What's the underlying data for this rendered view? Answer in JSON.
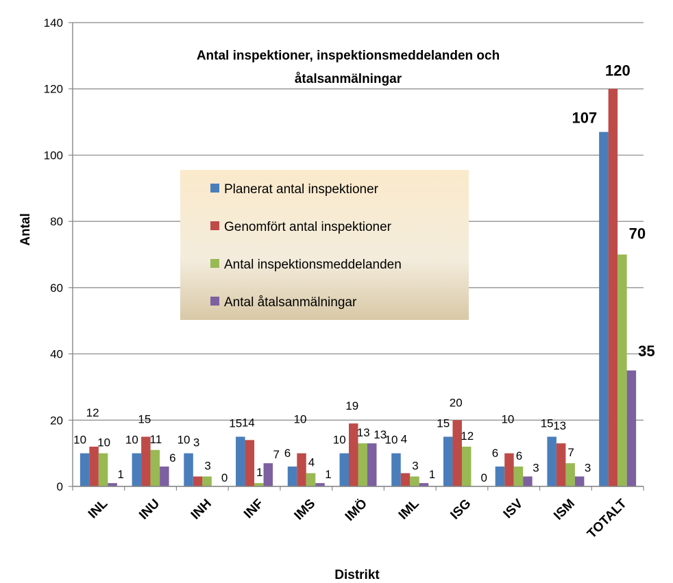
{
  "chart_data": {
    "type": "bar",
    "title": "Antal inspektioner, inspektionsmeddelanden och åtalsanmälningar",
    "title_lines": [
      "Antal inspektioner, inspektionsmeddelanden och",
      "åtalsanmälningar"
    ],
    "xlabel": "Distrikt",
    "ylabel": "Antal",
    "ylim": [
      0,
      140
    ],
    "yticks": [
      0,
      20,
      40,
      60,
      80,
      100,
      120,
      140
    ],
    "grid": true,
    "legend_position": "center-left",
    "categories": [
      "INL",
      "INU",
      "INH",
      "INF",
      "IMS",
      "IMÖ",
      "IML",
      "ISG",
      "ISV",
      "ISM",
      "TOTALT"
    ],
    "series": [
      {
        "name": "Planerat antal inspektioner",
        "color": "#4a7ebb",
        "values": [
          10,
          10,
          10,
          15,
          6,
          10,
          10,
          15,
          6,
          15,
          107
        ]
      },
      {
        "name": "Genomfört antal inspektioner",
        "color": "#be4b48",
        "values": [
          12,
          15,
          3,
          14,
          10,
          19,
          4,
          20,
          10,
          13,
          120
        ]
      },
      {
        "name": "Antal inspektionsmeddelanden",
        "color": "#98b954",
        "values": [
          10,
          11,
          3,
          1,
          4,
          13,
          3,
          12,
          6,
          7,
          70
        ]
      },
      {
        "name": "Antal åtalsanmälningar",
        "color": "#7d60a0",
        "values": [
          1,
          6,
          0,
          7,
          1,
          13,
          1,
          0,
          3,
          3,
          35
        ]
      }
    ],
    "data_labels": [
      [
        "10",
        "12",
        "10",
        "1"
      ],
      [
        "10",
        "15",
        "11",
        "6"
      ],
      [
        "10",
        "3",
        "3",
        "0"
      ],
      [
        "15",
        "14",
        "1",
        "7"
      ],
      [
        "6",
        "10",
        "4",
        "1"
      ],
      [
        "10",
        "19",
        "13",
        "13"
      ],
      [
        "10",
        "4",
        "3",
        "1"
      ],
      [
        "15",
        "20",
        "12",
        "0"
      ],
      [
        "6",
        "10",
        "6",
        "3"
      ],
      [
        "15",
        "13",
        "7",
        "3"
      ],
      [
        "107",
        "120",
        "70",
        "35"
      ]
    ],
    "total_label_color": "#ff0000"
  }
}
